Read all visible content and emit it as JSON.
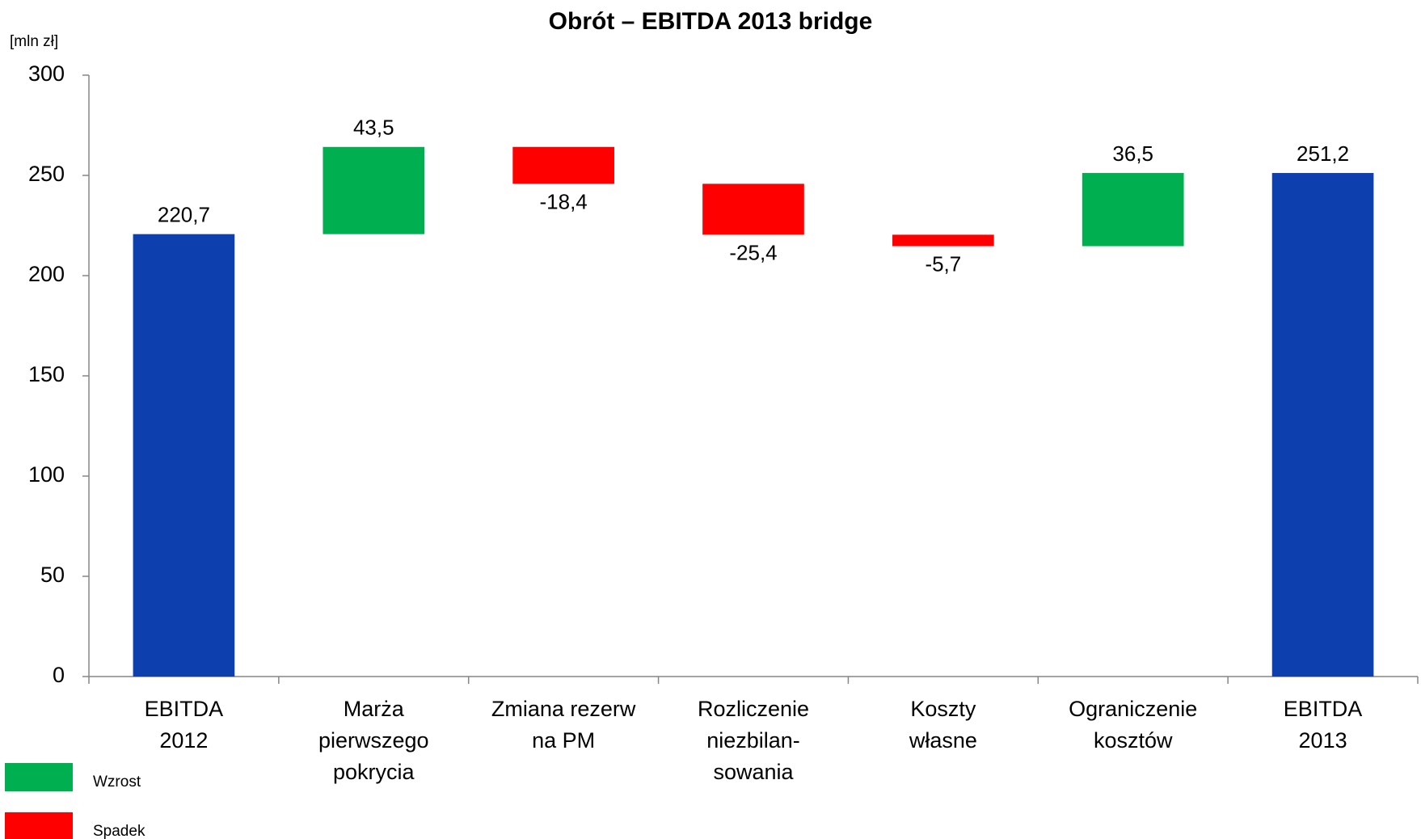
{
  "chart_data": {
    "type": "waterfall",
    "title": "Obrót – EBITDA 2013 bridge",
    "y_label": "[mln zł]",
    "categories": [
      [
        "EBITDA",
        "2012"
      ],
      [
        "Marża",
        "pierwszego",
        "pokrycia"
      ],
      [
        "Zmiana rezerw",
        "na PM"
      ],
      [
        "Rozliczenie",
        "niezbilan-",
        "sowania"
      ],
      [
        "Koszty",
        "własne"
      ],
      [
        "Ograniczenie",
        "kosztów"
      ],
      [
        "EBITDA",
        "2013"
      ]
    ],
    "values": [
      220.7,
      43.5,
      -18.4,
      -25.4,
      -5.7,
      36.5,
      251.2
    ],
    "value_labels": [
      "220,7",
      "43,5",
      "-18,4",
      "-25,4",
      "-5,7",
      "36,5",
      "251,2"
    ],
    "total_color": "#0d3fae",
    "increase_color": "#00b050",
    "decrease_color": "#ff0000",
    "legend": [
      {
        "name": "Wzrost",
        "color": "#00b050"
      },
      {
        "name": "Spadek",
        "color": "#ff0000"
      }
    ],
    "ylim": [
      0,
      300
    ],
    "yticks": [
      0,
      50,
      100,
      150,
      200,
      250,
      300
    ]
  }
}
